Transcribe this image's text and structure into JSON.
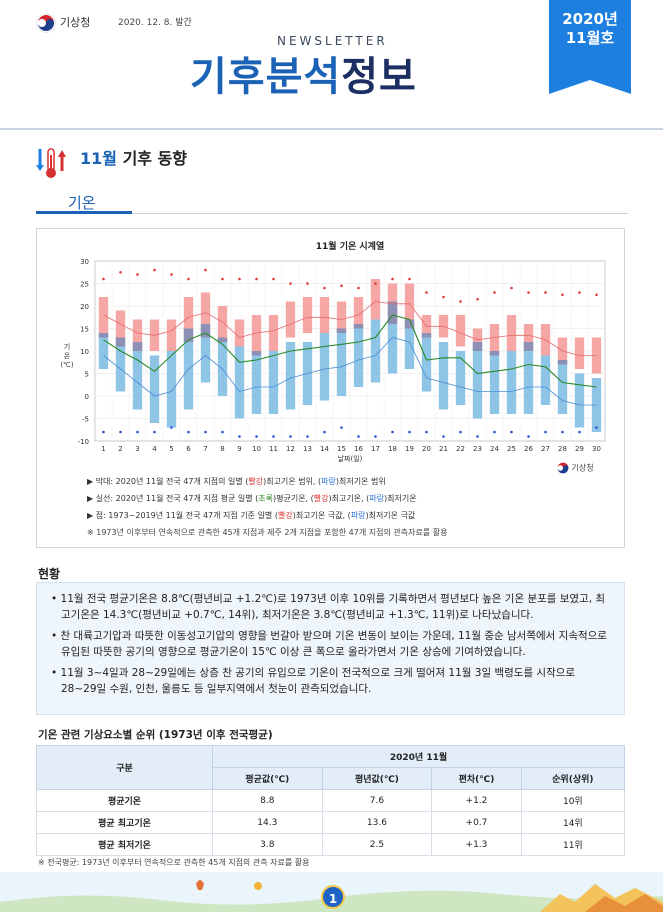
{
  "header": {
    "agency": "기상청",
    "issue_date": "2020. 12. 8. 발간",
    "newsletter_label": "NEWSLETTER",
    "title_part1": "기후분석",
    "title_part2": "정보",
    "issue_year": "2020년",
    "issue_month": "11월호"
  },
  "section": {
    "title_month": "11월",
    "title_rest": " 기후 동향",
    "subtitle": "기온"
  },
  "chart_data": {
    "type": "bar",
    "title": "11월 기온 시계열",
    "xlabel": "날짜(일)",
    "ylabel": "기온(℃)",
    "ylim": [
      -10,
      30
    ],
    "yticks": [
      "30",
      "25",
      "20",
      "15",
      "10",
      "5",
      "0",
      "-5",
      "-10"
    ],
    "categories": [
      "1",
      "2",
      "3",
      "4",
      "5",
      "6",
      "7",
      "8",
      "9",
      "10",
      "11",
      "12",
      "13",
      "14",
      "15",
      "16",
      "17",
      "18",
      "19",
      "20",
      "21",
      "22",
      "23",
      "24",
      "25",
      "26",
      "27",
      "28",
      "29",
      "30"
    ],
    "series": [
      {
        "name": "최고기온 범위",
        "color": "#f7a6a6",
        "low": [
          13,
          11,
          10,
          10,
          10,
          12,
          13,
          12,
          11,
          9,
          10,
          13,
          14,
          14,
          14,
          15,
          17,
          16,
          15,
          13,
          13,
          11,
          10,
          9,
          10,
          10,
          9,
          7,
          6,
          5
        ],
        "high": [
          22,
          19,
          17,
          17,
          17,
          22,
          23,
          20,
          17,
          18,
          18,
          21,
          22,
          22,
          21,
          22,
          26,
          25,
          25,
          18,
          18,
          18,
          15,
          16,
          18,
          16,
          16,
          13,
          13,
          13
        ]
      },
      {
        "name": "최저기온 범위",
        "color": "#8ec4e6",
        "low": [
          6,
          1,
          -3,
          -6,
          -7,
          -3,
          3,
          0,
          -5,
          -4,
          -4,
          -3,
          -2,
          -1,
          0,
          2,
          3,
          5,
          6,
          1,
          -3,
          -2,
          -5,
          -4,
          -4,
          -4,
          -2,
          -4,
          -7,
          -8
        ],
        "high": [
          14,
          13,
          12,
          9,
          10,
          15,
          16,
          13,
          11,
          10,
          10,
          12,
          12,
          14,
          15,
          16,
          17,
          21,
          17,
          14,
          12,
          10,
          12,
          10,
          10,
          12,
          9,
          8,
          5,
          4
        ]
      },
      {
        "name": "평균기온",
        "color": "#2a8a2a",
        "values": [
          12.5,
          10,
          8,
          5.5,
          9,
          12.5,
          14,
          11.5,
          7.5,
          8,
          9,
          10,
          10.5,
          11,
          11.5,
          12,
          13,
          18,
          17,
          8,
          8.5,
          8.5,
          5,
          5.5,
          6,
          7,
          6.5,
          3,
          2.5,
          2
        ]
      },
      {
        "name": "평균최고기온",
        "color": "#e46a6a",
        "values": [
          18,
          16,
          14,
          13.5,
          14.5,
          17.5,
          18.5,
          16.5,
          13,
          14,
          14.5,
          16,
          17.5,
          17.5,
          17,
          18,
          21,
          20.5,
          20.5,
          15.5,
          15.5,
          14,
          12.5,
          13,
          13.5,
          13.5,
          12.5,
          10,
          9,
          9
        ]
      },
      {
        "name": "평균최저기온",
        "color": "#4a8dd6",
        "values": [
          9,
          6,
          3,
          0,
          1,
          6,
          9,
          6,
          1,
          2,
          2,
          4,
          5,
          6,
          6.5,
          8,
          9,
          13,
          12,
          4,
          3,
          2,
          1,
          1,
          1,
          2,
          2,
          -1,
          -2,
          -2
        ]
      },
      {
        "name": "최고기온 극값",
        "color": "#e03a3a",
        "values": [
          26,
          27.5,
          27,
          28,
          27,
          26,
          28,
          26,
          26,
          26,
          26,
          25,
          25,
          24,
          24.5,
          24,
          25,
          26,
          26,
          23,
          22,
          21,
          21.5,
          23,
          24,
          23,
          23,
          22.5,
          23,
          22.5
        ]
      },
      {
        "name": "최저기온 극값",
        "color": "#2a4fd4",
        "values": [
          -8,
          -8,
          -8,
          -8,
          -7,
          -8,
          -8,
          -8,
          -9,
          -9,
          -9,
          -9,
          -9,
          -8,
          -7,
          -9,
          -9,
          -8,
          -8,
          -8,
          -9,
          -8,
          -9,
          -8,
          -8,
          -9,
          -8,
          -8,
          -8,
          -7
        ]
      }
    ],
    "grid": true,
    "legend": [
      {
        "marker": "▶",
        "text_before": " 막대: 2020년 11월 전국 47개 지점의 일별 (",
        "red": "빨강",
        "text_mid": ")최고기온 범위, (",
        "blue": "파랑",
        "text_after": ")최저기온 범위"
      },
      {
        "marker": "▶",
        "text_before": " 실선: 2020년 11월 전국 47개 지점 평균 일별 (",
        "green": "초록",
        "text_mid1": ")평균기온, (",
        "red": "빨강",
        "text_mid2": ")최고기온, (",
        "blue": "파랑",
        "text_after": ")최저기온"
      },
      {
        "marker": "▶",
        "text_before": " 점: 1973~2019년 11월 전국 47개 지점 기준 일별 (",
        "red": "빨강",
        "text_mid": ")최고기온 극값, (",
        "blue": "파랑",
        "text_after": ")최저기온 극값"
      }
    ],
    "note": "※ 1973년 이후부터 연속적으로 관측한 45개 지점과 제주 2개 지점을 포함한 47개 지점의 관측자료를 활용",
    "brand": "기상청"
  },
  "status": {
    "title": "현황",
    "p1": "• 11월 전국 평균기온은 8.8℃(평년비교 +1.2℃)로 1973년 이후 10위를 기록하면서 평년보다 높은 기온 분포를 보였고, 최고기온은 14.3℃(평년비교 +0.7℃, 14위), 최저기온은 3.8℃(평년비교 +1.3℃, 11위)로 나타났습니다.",
    "p2": "• 찬 대륙고기압과 따뜻한 이동성고기압의 영향을 번갈아 받으며 기온 변동이 보이는 가운데, 11월 중순 남서쪽에서 지속적으로 유입된 따뜻한 공기의 영향으로 평균기온이 15℃ 이상 큰 폭으로 올라가면서 기온 상승에 기여하였습니다.",
    "p3": "• 11월 3~4일과 28~29일에는 상층 찬 공기의 유입으로 기온이 전국적으로 크게 떨어져 11월 3일 백령도를 시작으로 28~29일 수원, 인천, 울릉도 등 일부지역에서 첫눈이 관측되었습니다."
  },
  "table": {
    "title": "기온 관련 기상요소별 순위 (1973년 이후 전국평균)",
    "col_group": "구분",
    "period": "2020년 11월",
    "headers": [
      "평균값(℃)",
      "평년값(℃)",
      "편차(℃)",
      "순위(상위)"
    ],
    "rows": [
      {
        "label": "평균기온",
        "avg": "8.8",
        "normal": "7.6",
        "diff": "+1.2",
        "rank": "10위"
      },
      {
        "label": "평균 최고기온",
        "avg": "14.3",
        "normal": "13.6",
        "diff": "+0.7",
        "rank": "14위"
      },
      {
        "label": "평균 최저기온",
        "avg": "3.8",
        "normal": "2.5",
        "diff": "+1.3",
        "rank": "11위"
      }
    ],
    "note": "※ 전국평균: 1973년 이후부터 연속적으로 관측한 45개 지점의 관측 자료를 활용"
  },
  "footer": {
    "page": "1"
  }
}
